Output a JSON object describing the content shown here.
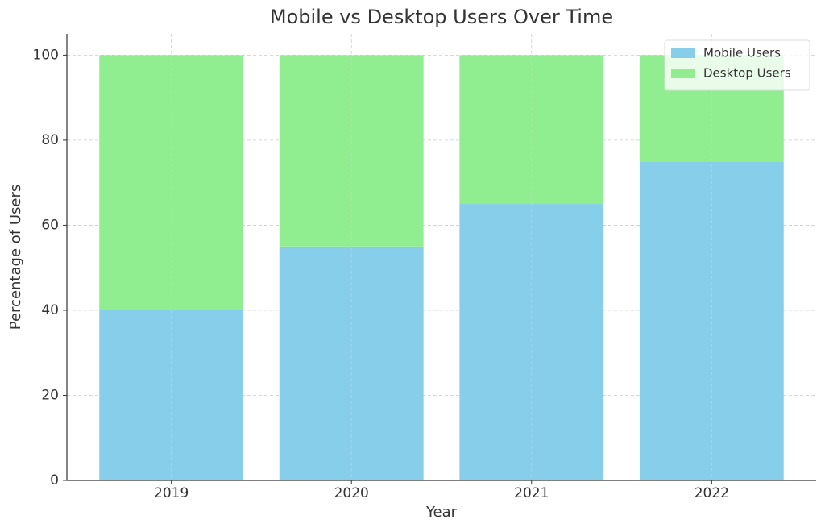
{
  "chart_data": {
    "type": "stacked_bar",
    "title": "Mobile vs Desktop Users Over Time",
    "x_label": "Year",
    "y_label": "Percentage of Users",
    "categories": [
      "2019",
      "2020",
      "2021",
      "2022"
    ],
    "series": [
      {
        "name": "Mobile Users",
        "color": "#87ceeb",
        "values": [
          40,
          55,
          65,
          75
        ]
      },
      {
        "name": "Desktop Users",
        "color": "#90ee90",
        "values": [
          60,
          45,
          35,
          25
        ]
      }
    ],
    "ylim": [
      0,
      105
    ],
    "yticks": [
      0,
      20,
      40,
      60,
      80,
      100
    ],
    "grid": true,
    "legend": "upper right"
  }
}
